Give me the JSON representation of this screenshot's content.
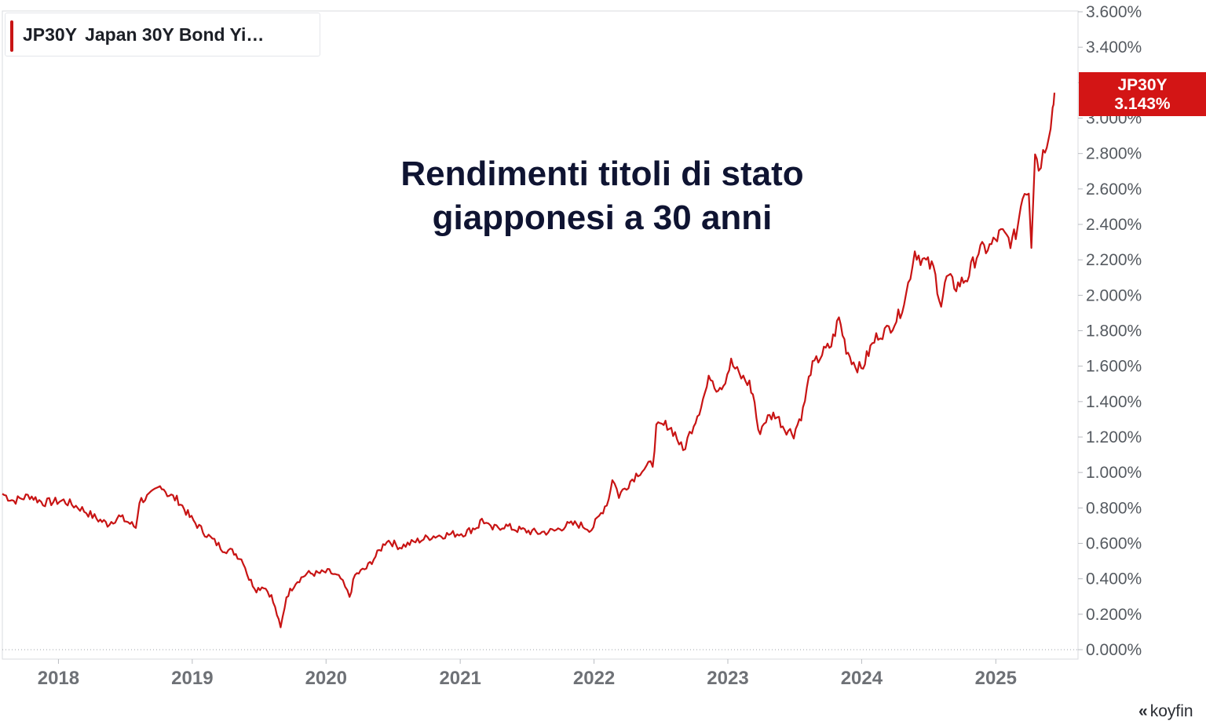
{
  "legend": {
    "symbol": "JP30Y",
    "name": "Japan 30Y Bond Yi…"
  },
  "price_tag": {
    "symbol": "JP30Y",
    "value": "3.143%"
  },
  "brand": {
    "icon": "koyfin-logo-icon",
    "label": "koyfin"
  },
  "colors": {
    "series": "#c81414",
    "tag": "#d31515"
  },
  "chart_data": {
    "type": "line",
    "title": "Rendimenti titoli di stato\ngiapponesi a 30 anni",
    "ylim": [
      0,
      3.6
    ],
    "y_ticks": [
      {
        "value": 0.0,
        "label": "0.000%"
      },
      {
        "value": 0.2,
        "label": "0.200%"
      },
      {
        "value": 0.4,
        "label": "0.400%"
      },
      {
        "value": 0.6,
        "label": "0.600%"
      },
      {
        "value": 0.8,
        "label": "0.800%"
      },
      {
        "value": 1.0,
        "label": "1.000%"
      },
      {
        "value": 1.2,
        "label": "1.200%"
      },
      {
        "value": 1.4,
        "label": "1.400%"
      },
      {
        "value": 1.6,
        "label": "1.600%"
      },
      {
        "value": 1.8,
        "label": "1.800%"
      },
      {
        "value": 2.0,
        "label": "2.000%"
      },
      {
        "value": 2.2,
        "label": "2.200%"
      },
      {
        "value": 2.4,
        "label": "2.400%"
      },
      {
        "value": 2.6,
        "label": "2.600%"
      },
      {
        "value": 2.8,
        "label": "2.800%"
      },
      {
        "value": 3.0,
        "label": "3.000%"
      },
      {
        "value": 3.2,
        "label": "3.200%"
      },
      {
        "value": 3.4,
        "label": "3.400%"
      },
      {
        "value": 3.6,
        "label": "3.600%"
      }
    ],
    "xlim": [
      "2017-08-01",
      "2025-06-10"
    ],
    "x_ticks": [
      {
        "value": "2018-01-01",
        "label": "2018"
      },
      {
        "value": "2019-01-01",
        "label": "2019"
      },
      {
        "value": "2020-01-01",
        "label": "2020"
      },
      {
        "value": "2021-01-01",
        "label": "2021"
      },
      {
        "value": "2022-01-01",
        "label": "2022"
      },
      {
        "value": "2023-01-01",
        "label": "2023"
      },
      {
        "value": "2024-01-01",
        "label": "2024"
      },
      {
        "value": "2025-01-01",
        "label": "2025"
      }
    ],
    "grid": false,
    "legend_position": "top-left",
    "series": [
      {
        "name": "JP30Y",
        "points": [
          [
            "2017-08-01",
            0.88
          ],
          [
            "2017-09-01",
            0.84
          ],
          [
            "2017-10-15",
            0.87
          ],
          [
            "2017-11-20",
            0.83
          ],
          [
            "2018-01-15",
            0.84
          ],
          [
            "2018-03-01",
            0.8
          ],
          [
            "2018-04-15",
            0.74
          ],
          [
            "2018-05-15",
            0.71
          ],
          [
            "2018-06-15",
            0.75
          ],
          [
            "2018-07-10",
            0.72
          ],
          [
            "2018-07-31",
            0.69
          ],
          [
            "2018-08-10",
            0.84
          ],
          [
            "2018-09-10",
            0.87
          ],
          [
            "2018-10-10",
            0.93
          ],
          [
            "2018-10-25",
            0.88
          ],
          [
            "2018-11-25",
            0.84
          ],
          [
            "2018-12-25",
            0.75
          ],
          [
            "2019-01-25",
            0.68
          ],
          [
            "2019-02-25",
            0.62
          ],
          [
            "2019-03-25",
            0.57
          ],
          [
            "2019-04-25",
            0.55
          ],
          [
            "2019-05-20",
            0.5
          ],
          [
            "2019-06-05",
            0.4
          ],
          [
            "2019-06-25",
            0.34
          ],
          [
            "2019-07-15",
            0.36
          ],
          [
            "2019-08-05",
            0.3
          ],
          [
            "2019-08-20",
            0.2
          ],
          [
            "2019-08-30",
            0.12
          ],
          [
            "2019-09-15",
            0.3
          ],
          [
            "2019-10-10",
            0.38
          ],
          [
            "2019-11-10",
            0.43
          ],
          [
            "2019-12-10",
            0.43
          ],
          [
            "2020-01-10",
            0.44
          ],
          [
            "2020-02-10",
            0.4
          ],
          [
            "2020-03-05",
            0.3
          ],
          [
            "2020-03-20",
            0.42
          ],
          [
            "2020-04-20",
            0.46
          ],
          [
            "2020-05-20",
            0.54
          ],
          [
            "2020-06-15",
            0.62
          ],
          [
            "2020-07-20",
            0.58
          ],
          [
            "2020-09-01",
            0.61
          ],
          [
            "2020-10-15",
            0.64
          ],
          [
            "2020-12-01",
            0.65
          ],
          [
            "2021-01-15",
            0.66
          ],
          [
            "2021-02-20",
            0.7
          ],
          [
            "2021-03-01",
            0.74
          ],
          [
            "2021-03-25",
            0.68
          ],
          [
            "2021-05-01",
            0.7
          ],
          [
            "2021-06-01",
            0.68
          ],
          [
            "2021-07-01",
            0.67
          ],
          [
            "2021-08-01",
            0.66
          ],
          [
            "2021-09-15",
            0.67
          ],
          [
            "2021-10-15",
            0.7
          ],
          [
            "2021-11-15",
            0.71
          ],
          [
            "2021-12-25",
            0.68
          ],
          [
            "2022-01-15",
            0.75
          ],
          [
            "2022-02-10",
            0.85
          ],
          [
            "2022-02-20",
            0.97
          ],
          [
            "2022-03-10",
            0.87
          ],
          [
            "2022-04-10",
            0.95
          ],
          [
            "2022-05-01",
            1.0
          ],
          [
            "2022-06-10",
            1.05
          ],
          [
            "2022-06-20",
            1.25
          ],
          [
            "2022-07-20",
            1.27
          ],
          [
            "2022-08-10",
            1.22
          ],
          [
            "2022-09-01",
            1.12
          ],
          [
            "2022-09-25",
            1.25
          ],
          [
            "2022-10-20",
            1.38
          ],
          [
            "2022-11-15",
            1.55
          ],
          [
            "2022-12-01",
            1.48
          ],
          [
            "2022-12-20",
            1.5
          ],
          [
            "2023-01-10",
            1.62
          ],
          [
            "2023-02-01",
            1.55
          ],
          [
            "2023-03-01",
            1.5
          ],
          [
            "2023-03-15",
            1.4
          ],
          [
            "2023-03-25",
            1.22
          ],
          [
            "2023-04-15",
            1.3
          ],
          [
            "2023-05-10",
            1.33
          ],
          [
            "2023-06-05",
            1.25
          ],
          [
            "2023-06-30",
            1.22
          ],
          [
            "2023-07-25",
            1.35
          ],
          [
            "2023-08-15",
            1.58
          ],
          [
            "2023-09-15",
            1.67
          ],
          [
            "2023-10-10",
            1.72
          ],
          [
            "2023-10-31",
            1.87
          ],
          [
            "2023-11-20",
            1.7
          ],
          [
            "2023-12-10",
            1.62
          ],
          [
            "2023-12-31",
            1.58
          ],
          [
            "2024-01-25",
            1.7
          ],
          [
            "2024-02-15",
            1.78
          ],
          [
            "2024-03-10",
            1.8
          ],
          [
            "2024-04-10",
            1.88
          ],
          [
            "2024-05-01",
            2.0
          ],
          [
            "2024-05-25",
            2.25
          ],
          [
            "2024-06-15",
            2.2
          ],
          [
            "2024-07-15",
            2.15
          ],
          [
            "2024-08-05",
            1.95
          ],
          [
            "2024-08-20",
            2.1
          ],
          [
            "2024-09-15",
            2.05
          ],
          [
            "2024-10-15",
            2.1
          ],
          [
            "2024-11-15",
            2.25
          ],
          [
            "2024-12-15",
            2.27
          ],
          [
            "2025-01-15",
            2.35
          ],
          [
            "2025-02-15",
            2.3
          ],
          [
            "2025-03-01",
            2.38
          ],
          [
            "2025-03-15",
            2.58
          ],
          [
            "2025-04-01",
            2.6
          ],
          [
            "2025-04-08",
            2.3
          ],
          [
            "2025-04-18",
            2.82
          ],
          [
            "2025-04-28",
            2.72
          ],
          [
            "2025-05-10",
            2.8
          ],
          [
            "2025-05-25",
            2.92
          ],
          [
            "2025-06-05",
            3.05
          ],
          [
            "2025-06-10",
            3.143
          ]
        ]
      }
    ]
  }
}
